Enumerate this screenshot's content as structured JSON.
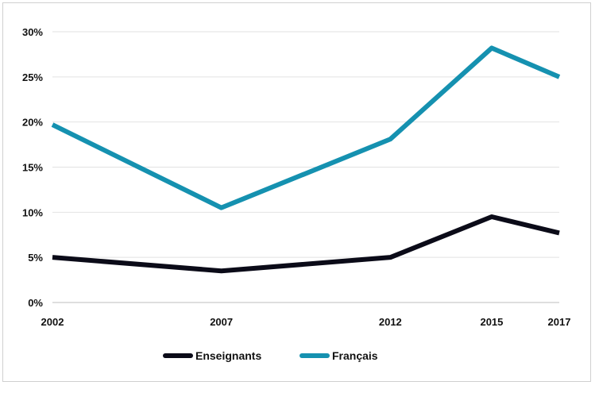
{
  "chart_data": {
    "type": "line",
    "categories": [
      "2002",
      "2007",
      "2012",
      "2015",
      "2017"
    ],
    "x": [
      2002,
      2007,
      2012,
      2015,
      2017
    ],
    "y_ticks": [
      "0%",
      "5%",
      "10%",
      "15%",
      "20%",
      "25%",
      "30%"
    ],
    "ylim": [
      0,
      30
    ],
    "grid": true,
    "legend_position": "bottom",
    "series": [
      {
        "name": "Enseignants",
        "color": "#0b0b18",
        "values": [
          5.0,
          3.5,
          5.0,
          9.5,
          7.7
        ]
      },
      {
        "name": "Français",
        "color": "#1591b0",
        "values": [
          19.7,
          10.5,
          18.1,
          28.2,
          25.0
        ]
      }
    ]
  }
}
